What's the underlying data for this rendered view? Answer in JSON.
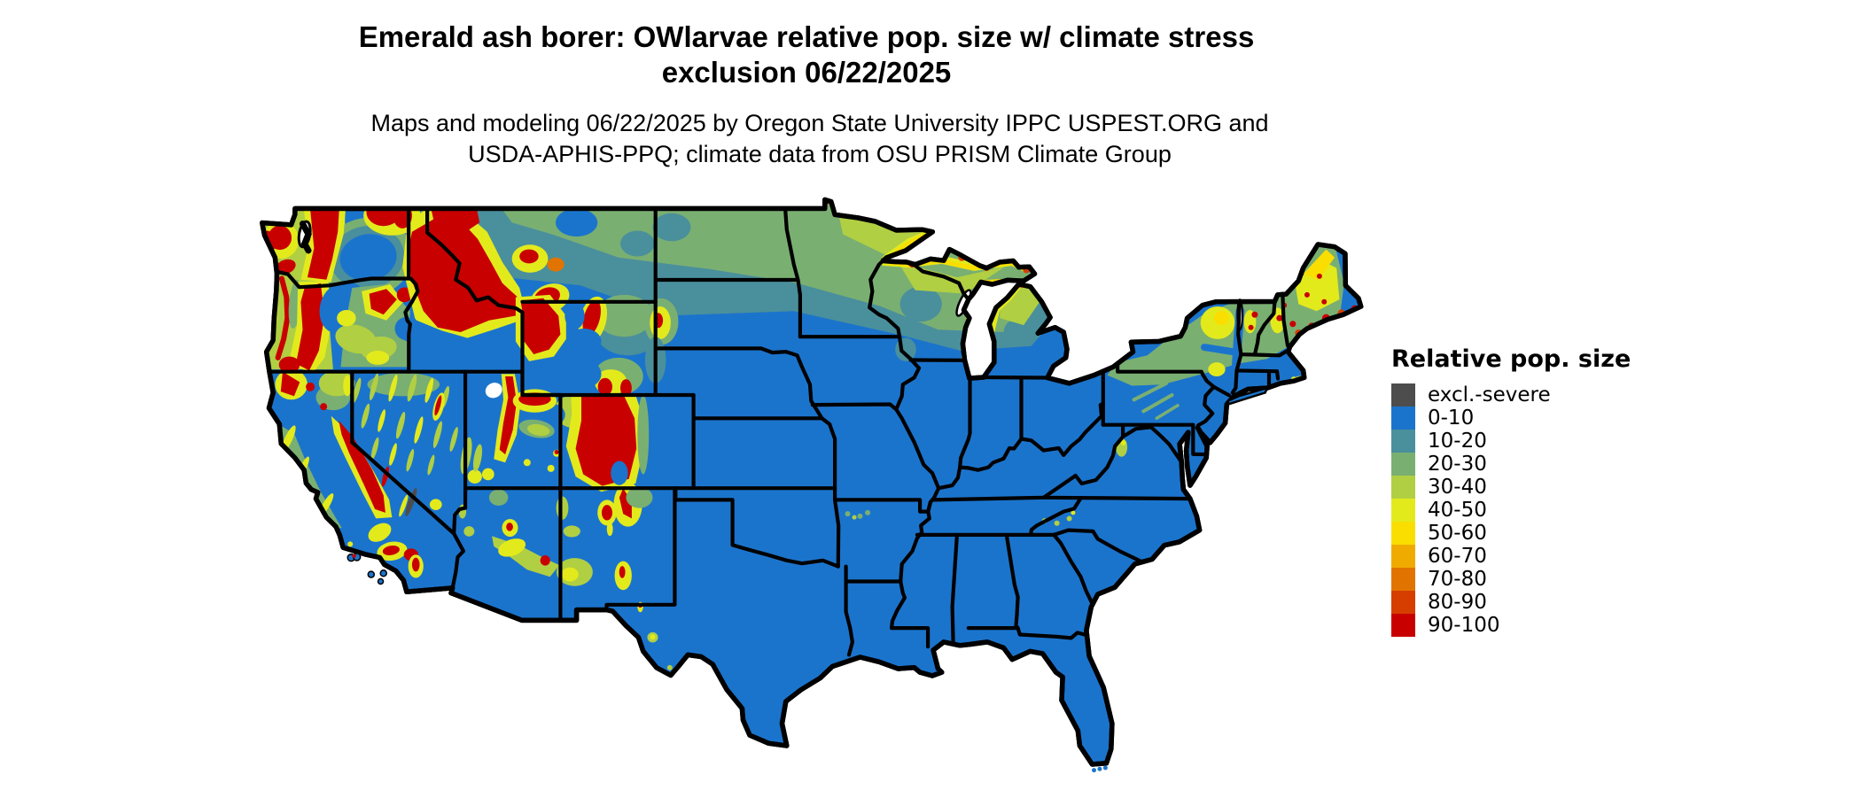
{
  "header": {
    "title_lines": [
      "Emerald ash borer: OWlarvae relative pop. size w/ climate stress",
      "exclusion 06/22/2025"
    ],
    "subtitle_lines": [
      "Maps and modeling 06/22/2025 by Oregon State University IPPC USPEST.ORG and",
      "USDA-APHIS-PPQ; climate data from OSU PRISM Climate Group"
    ]
  },
  "legend": {
    "title": "Relative pop. size",
    "entries": [
      {
        "key": "v_excl",
        "label": "excl.-severe",
        "color": "#4D4D4D"
      },
      {
        "key": "v0_10",
        "label": "0-10",
        "color": "#1B74CC"
      },
      {
        "key": "v10_20",
        "label": "10-20",
        "color": "#4A8F9C"
      },
      {
        "key": "v20_30",
        "label": "20-30",
        "color": "#7AAF72"
      },
      {
        "key": "v30_40",
        "label": "30-40",
        "color": "#B1CF42"
      },
      {
        "key": "v40_50",
        "label": "40-50",
        "color": "#E3EA1C"
      },
      {
        "key": "v50_60",
        "label": "50-60",
        "color": "#F9DE00"
      },
      {
        "key": "v60_70",
        "label": "60-70",
        "color": "#F0AB00"
      },
      {
        "key": "v70_80",
        "label": "70-80",
        "color": "#E17400"
      },
      {
        "key": "v80_90",
        "label": "80-90",
        "color": "#D63E00"
      },
      {
        "key": "v90_100",
        "label": "90-100",
        "color": "#C90000"
      }
    ]
  },
  "map": {
    "water_color": "#FFFFFF",
    "border_color": "#000000",
    "base_value_key": "v0_10"
  }
}
